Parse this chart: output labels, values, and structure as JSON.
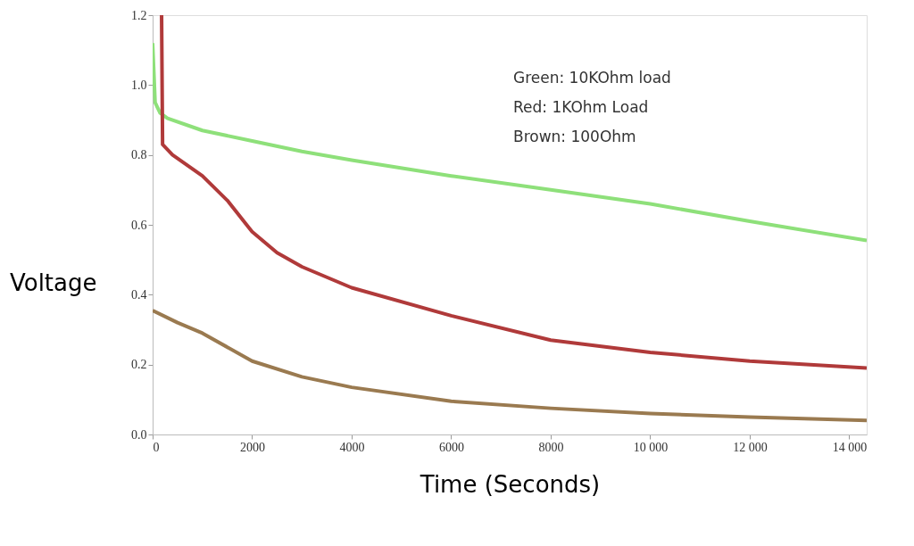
{
  "chart_data": {
    "type": "line",
    "xlabel": "Time (Seconds)",
    "ylabel": "Voltage",
    "xlim": [
      0,
      14350
    ],
    "ylim": [
      0,
      1.2
    ],
    "xticks": [
      0,
      2000,
      4000,
      6000,
      8000,
      {
        "value": 10000,
        "label": "10 000"
      },
      {
        "value": 12000,
        "label": "12 000"
      },
      {
        "value": 14000,
        "label": "14 000"
      }
    ],
    "yticks": [
      {
        "value": 0,
        "label": "0.0"
      },
      0.2,
      0.4,
      0.6,
      0.8,
      {
        "value": 1,
        "label": "1.0"
      },
      1.2
    ],
    "grid": false,
    "marker": "none",
    "line_style": "solid",
    "annotations": [
      "Green: 10KOhm load",
      "Red: 1KOhm Load",
      "Brown: 100Ohm"
    ],
    "series": [
      {
        "color": "#8ee07a",
        "x": [
          0,
          50,
          150,
          300,
          1000,
          2000,
          3000,
          4000,
          6000,
          8000,
          10000,
          12000,
          14350
        ],
        "values": [
          1.12,
          0.95,
          0.92,
          0.905,
          0.87,
          0.84,
          0.81,
          0.785,
          0.74,
          0.7,
          0.66,
          0.61,
          0.555
        ]
      },
      {
        "color": "#b03a3a",
        "x": [
          180,
          200,
          400,
          1000,
          1500,
          2000,
          2500,
          3000,
          4000,
          6000,
          8000,
          10000,
          12000,
          14350
        ],
        "values": [
          1.2,
          0.83,
          0.8,
          0.74,
          0.67,
          0.58,
          0.52,
          0.48,
          0.42,
          0.34,
          0.27,
          0.235,
          0.21,
          0.19
        ]
      },
      {
        "color": "#9a7a50",
        "x": [
          0,
          500,
          1000,
          2000,
          3000,
          4000,
          6000,
          8000,
          10000,
          12000,
          14350
        ],
        "values": [
          0.355,
          0.32,
          0.29,
          0.21,
          0.165,
          0.135,
          0.095,
          0.075,
          0.06,
          0.05,
          0.04
        ]
      }
    ]
  }
}
